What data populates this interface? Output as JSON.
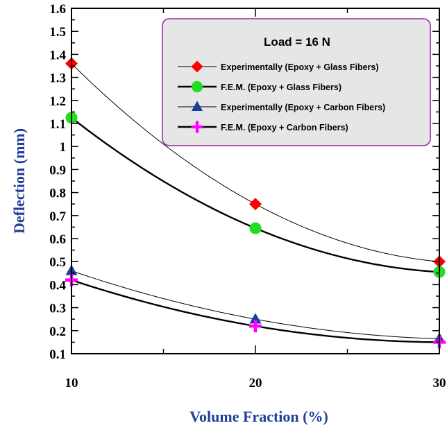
{
  "chart_data": {
    "type": "line",
    "xlabel": "Volume Fraction (%)",
    "ylabel": "Deflection (mm)",
    "xlim": [
      10,
      30
    ],
    "ylim": [
      0.1,
      1.6
    ],
    "x_ticks": [
      "10",
      "20",
      "30"
    ],
    "y_ticks": [
      "0.1",
      "0.2",
      "0.3",
      "0.4",
      "0.5",
      "0.6",
      "0.7",
      "0.8",
      "0.9",
      "1",
      "1.1",
      "1.2",
      "1.3",
      "1.4",
      "1.5",
      "1.6"
    ],
    "grid": false,
    "legend_title": "Load = 16 N",
    "legend_position": "top-right",
    "series": [
      {
        "name": "Experimentally (Epoxy + Glass Fibers)",
        "marker": "diamond",
        "color": "#ff0000",
        "line": "thin",
        "x": [
          10,
          20,
          30
        ],
        "values": [
          1.36,
          0.75,
          0.5
        ]
      },
      {
        "name": "F.E.M. (Epoxy + Glass Fibers)",
        "marker": "circle",
        "color": "#22dd22",
        "line": "thick",
        "x": [
          10,
          20,
          30
        ],
        "values": [
          1.125,
          0.645,
          0.455
        ]
      },
      {
        "name": "Experimentally (Epoxy + Carbon Fibers)",
        "marker": "triangle",
        "color": "#1a3f99",
        "line": "thin",
        "x": [
          10,
          20,
          30
        ],
        "values": [
          0.46,
          0.25,
          0.165
        ]
      },
      {
        "name": "F.E.M. (Epoxy + Carbon Fibers)",
        "marker": "plus",
        "color": "#ff00ff",
        "line": "thick",
        "x": [
          10,
          20,
          30
        ],
        "values": [
          0.42,
          0.22,
          0.15
        ]
      }
    ]
  }
}
